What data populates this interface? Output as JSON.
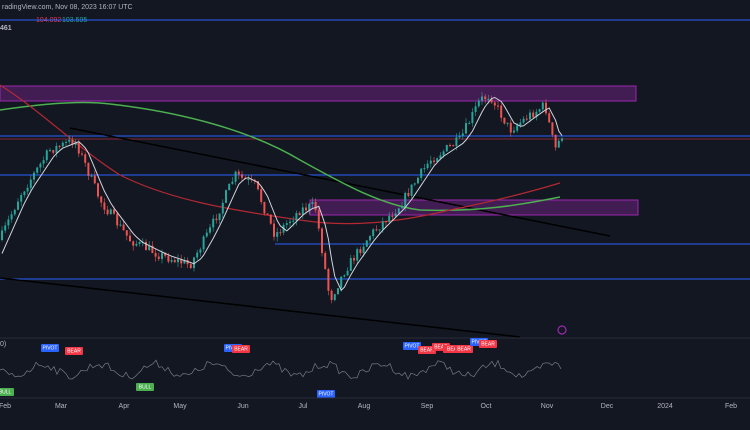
{
  "header": {
    "source": "radingView.com, Nov 08, 2023 16:07 UTC",
    "symbol": "461",
    "value_1": "104.092",
    "value_2": "103.595"
  },
  "indicator": {
    "label": "0)",
    "signals": [
      "BULL",
      "PIVOT",
      "BEAR",
      "BULL",
      "PIVOT",
      "BEAR",
      "PIVOT",
      "PIVOT",
      "BEAR",
      "BEAR",
      "BEA",
      "BEAR",
      "PIVOT",
      "BEAR"
    ]
  },
  "x_axis": {
    "labels": [
      "Feb",
      "Mar",
      "Apr",
      "May",
      "Jun",
      "Jul",
      "Aug",
      "Sep",
      "Oct",
      "Nov",
      "Dec",
      "2024",
      "Feb"
    ]
  }
}
